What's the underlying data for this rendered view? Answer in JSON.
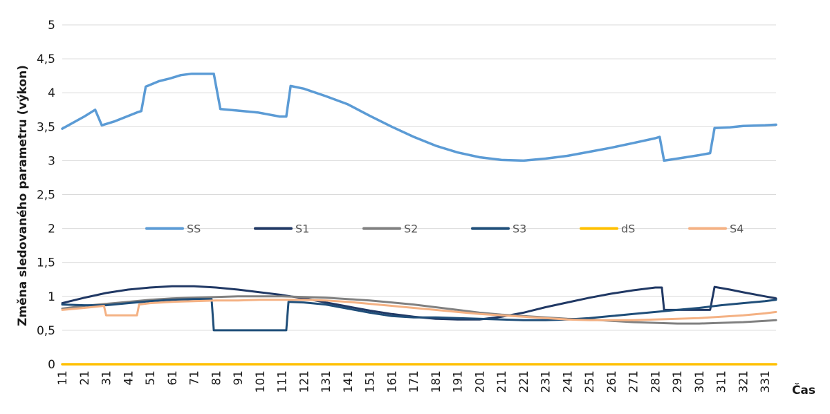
{
  "chart_data": {
    "type": "line",
    "title": "",
    "xlabel": "Čas",
    "ylabel": "Změna sledovaného parametru (výkon)",
    "ylim": [
      0,
      5
    ],
    "xlim": [
      11,
      336
    ],
    "yticks": [
      "0",
      "0,5",
      "1",
      "1,5",
      "2",
      "2,5",
      "3",
      "3,5",
      "4",
      "4,5",
      "5"
    ],
    "xticks": [
      "11",
      "21",
      "31",
      "41",
      "51",
      "61",
      "71",
      "81",
      "91",
      "101",
      "111",
      "121",
      "131",
      "141",
      "151",
      "161",
      "171",
      "181",
      "191",
      "201",
      "211",
      "221",
      "231",
      "241",
      "251",
      "261",
      "271",
      "281",
      "291",
      "301",
      "311",
      "321",
      "331"
    ],
    "grid": "horizontal",
    "legend": "center",
    "series": [
      {
        "name": "SS",
        "color": "#5b9bd5",
        "width": 3.5,
        "points": [
          [
            11,
            3.47
          ],
          [
            21,
            3.65
          ],
          [
            26,
            3.75
          ],
          [
            29,
            3.52
          ],
          [
            35,
            3.58
          ],
          [
            45,
            3.71
          ],
          [
            47,
            3.73
          ],
          [
            49,
            4.09
          ],
          [
            55,
            4.17
          ],
          [
            60,
            4.21
          ],
          [
            65,
            4.26
          ],
          [
            70,
            4.28
          ],
          [
            80,
            4.28
          ],
          [
            83,
            3.76
          ],
          [
            90,
            3.74
          ],
          [
            100,
            3.71
          ],
          [
            110,
            3.65
          ],
          [
            113,
            3.65
          ],
          [
            115,
            4.1
          ],
          [
            121,
            4.06
          ],
          [
            131,
            3.95
          ],
          [
            141,
            3.83
          ],
          [
            151,
            3.66
          ],
          [
            161,
            3.5
          ],
          [
            171,
            3.35
          ],
          [
            181,
            3.22
          ],
          [
            191,
            3.12
          ],
          [
            201,
            3.05
          ],
          [
            211,
            3.01
          ],
          [
            221,
            3.0
          ],
          [
            231,
            3.03
          ],
          [
            241,
            3.07
          ],
          [
            251,
            3.13
          ],
          [
            261,
            3.19
          ],
          [
            271,
            3.26
          ],
          [
            281,
            3.33
          ],
          [
            283,
            3.35
          ],
          [
            285,
            3.0
          ],
          [
            291,
            3.03
          ],
          [
            301,
            3.08
          ],
          [
            306,
            3.11
          ],
          [
            308,
            3.48
          ],
          [
            315,
            3.49
          ],
          [
            321,
            3.51
          ],
          [
            331,
            3.52
          ],
          [
            336,
            3.53
          ]
        ]
      },
      {
        "name": "S1",
        "color": "#203864",
        "width": 3,
        "points": [
          [
            11,
            0.9
          ],
          [
            21,
            0.98
          ],
          [
            31,
            1.05
          ],
          [
            41,
            1.1
          ],
          [
            51,
            1.13
          ],
          [
            61,
            1.15
          ],
          [
            71,
            1.15
          ],
          [
            81,
            1.13
          ],
          [
            91,
            1.1
          ],
          [
            101,
            1.06
          ],
          [
            111,
            1.02
          ],
          [
            121,
            0.97
          ],
          [
            131,
            0.91
          ],
          [
            141,
            0.85
          ],
          [
            151,
            0.79
          ],
          [
            161,
            0.74
          ],
          [
            171,
            0.7
          ],
          [
            181,
            0.67
          ],
          [
            191,
            0.66
          ],
          [
            201,
            0.66
          ],
          [
            211,
            0.7
          ],
          [
            221,
            0.76
          ],
          [
            231,
            0.84
          ],
          [
            241,
            0.91
          ],
          [
            251,
            0.98
          ],
          [
            261,
            1.04
          ],
          [
            271,
            1.09
          ],
          [
            281,
            1.13
          ],
          [
            284,
            1.13
          ],
          [
            285,
            0.8
          ],
          [
            291,
            0.8
          ],
          [
            301,
            0.8
          ],
          [
            306,
            0.8
          ],
          [
            308,
            1.14
          ],
          [
            315,
            1.1
          ],
          [
            321,
            1.06
          ],
          [
            331,
            1.0
          ],
          [
            336,
            0.97
          ]
        ]
      },
      {
        "name": "S2",
        "color": "#808080",
        "width": 3,
        "points": [
          [
            11,
            0.82
          ],
          [
            21,
            0.86
          ],
          [
            31,
            0.89
          ],
          [
            41,
            0.92
          ],
          [
            51,
            0.95
          ],
          [
            61,
            0.97
          ],
          [
            71,
            0.98
          ],
          [
            81,
            0.99
          ],
          [
            91,
            1.0
          ],
          [
            101,
            1.0
          ],
          [
            111,
            1.0
          ],
          [
            121,
            0.99
          ],
          [
            131,
            0.98
          ],
          [
            141,
            0.96
          ],
          [
            151,
            0.94
          ],
          [
            161,
            0.91
          ],
          [
            171,
            0.88
          ],
          [
            181,
            0.84
          ],
          [
            191,
            0.8
          ],
          [
            201,
            0.76
          ],
          [
            211,
            0.73
          ],
          [
            221,
            0.71
          ],
          [
            231,
            0.69
          ],
          [
            241,
            0.67
          ],
          [
            251,
            0.66
          ],
          [
            261,
            0.64
          ],
          [
            271,
            0.62
          ],
          [
            281,
            0.61
          ],
          [
            291,
            0.6
          ],
          [
            301,
            0.6
          ],
          [
            311,
            0.61
          ],
          [
            321,
            0.62
          ],
          [
            331,
            0.64
          ],
          [
            336,
            0.65
          ]
        ]
      },
      {
        "name": "S3",
        "color": "#1f4e79",
        "width": 3,
        "points": [
          [
            11,
            0.88
          ],
          [
            21,
            0.87
          ],
          [
            31,
            0.87
          ],
          [
            41,
            0.9
          ],
          [
            51,
            0.93
          ],
          [
            61,
            0.95
          ],
          [
            71,
            0.96
          ],
          [
            79,
            0.96
          ],
          [
            80,
            0.5
          ],
          [
            90,
            0.5
          ],
          [
            100,
            0.5
          ],
          [
            113,
            0.5
          ],
          [
            114,
            0.92
          ],
          [
            121,
            0.91
          ],
          [
            131,
            0.88
          ],
          [
            141,
            0.82
          ],
          [
            151,
            0.76
          ],
          [
            161,
            0.71
          ],
          [
            171,
            0.69
          ],
          [
            181,
            0.69
          ],
          [
            191,
            0.68
          ],
          [
            201,
            0.67
          ],
          [
            211,
            0.66
          ],
          [
            221,
            0.65
          ],
          [
            231,
            0.65
          ],
          [
            241,
            0.66
          ],
          [
            251,
            0.68
          ],
          [
            261,
            0.71
          ],
          [
            271,
            0.74
          ],
          [
            281,
            0.77
          ],
          [
            291,
            0.8
          ],
          [
            301,
            0.83
          ],
          [
            311,
            0.87
          ],
          [
            321,
            0.9
          ],
          [
            331,
            0.93
          ],
          [
            336,
            0.95
          ]
        ]
      },
      {
        "name": "dS",
        "color": "#ffc000",
        "width": 3.5,
        "points": [
          [
            11,
            0.0
          ],
          [
            336,
            0.0
          ]
        ]
      },
      {
        "name": "S4",
        "color": "#f4b183",
        "width": 3,
        "points": [
          [
            11,
            0.8
          ],
          [
            21,
            0.83
          ],
          [
            30,
            0.86
          ],
          [
            31,
            0.72
          ],
          [
            45,
            0.72
          ],
          [
            46,
            0.88
          ],
          [
            51,
            0.9
          ],
          [
            61,
            0.92
          ],
          [
            71,
            0.93
          ],
          [
            81,
            0.94
          ],
          [
            91,
            0.94
          ],
          [
            101,
            0.95
          ],
          [
            111,
            0.95
          ],
          [
            121,
            0.95
          ],
          [
            131,
            0.94
          ],
          [
            141,
            0.92
          ],
          [
            151,
            0.89
          ],
          [
            161,
            0.86
          ],
          [
            171,
            0.83
          ],
          [
            181,
            0.8
          ],
          [
            191,
            0.77
          ],
          [
            201,
            0.74
          ],
          [
            211,
            0.72
          ],
          [
            221,
            0.7
          ],
          [
            231,
            0.68
          ],
          [
            241,
            0.66
          ],
          [
            251,
            0.65
          ],
          [
            261,
            0.65
          ],
          [
            271,
            0.65
          ],
          [
            281,
            0.66
          ],
          [
            291,
            0.67
          ],
          [
            301,
            0.68
          ],
          [
            311,
            0.7
          ],
          [
            321,
            0.72
          ],
          [
            331,
            0.75
          ],
          [
            336,
            0.77
          ]
        ]
      }
    ]
  }
}
